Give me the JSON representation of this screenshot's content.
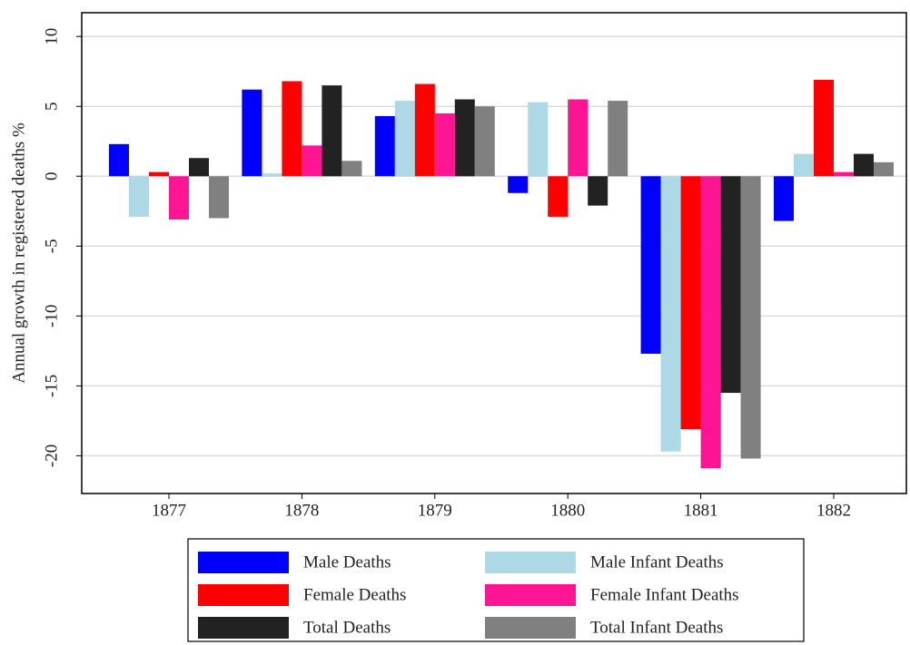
{
  "chart_data": {
    "type": "bar",
    "y_label": "Annual growth in registered deaths %",
    "categories": [
      "1877",
      "1878",
      "1879",
      "1880",
      "1881",
      "1882"
    ],
    "series": [
      {
        "name": "Male Deaths",
        "color": "#0000ff",
        "values": [
          2.3,
          6.2,
          4.3,
          -1.2,
          -12.7,
          -3.2
        ]
      },
      {
        "name": "Male Infant Deaths",
        "color": "#add8e6",
        "values": [
          -2.9,
          0.2,
          5.4,
          5.3,
          -19.7,
          1.6
        ]
      },
      {
        "name": "Female Deaths",
        "color": "#ff0000",
        "values": [
          0.3,
          6.8,
          6.6,
          -2.9,
          -18.1,
          6.9
        ]
      },
      {
        "name": "Female Infant Deaths",
        "color": "#ff1493",
        "values": [
          -3.1,
          2.2,
          4.5,
          5.5,
          -20.9,
          0.3
        ]
      },
      {
        "name": "Total Deaths",
        "color": "#222222",
        "values": [
          1.3,
          6.5,
          5.5,
          -2.1,
          -15.5,
          1.6
        ]
      },
      {
        "name": "Total Infant Deaths",
        "color": "#808080",
        "values": [
          -3.0,
          1.1,
          5.0,
          5.4,
          -20.2,
          1.0
        ]
      }
    ],
    "ylim": [
      -22.7,
      11.7
    ],
    "yticks": [
      -20,
      -15,
      -10,
      -5,
      0,
      5,
      10
    ],
    "grid": true,
    "legend": "bottom"
  }
}
